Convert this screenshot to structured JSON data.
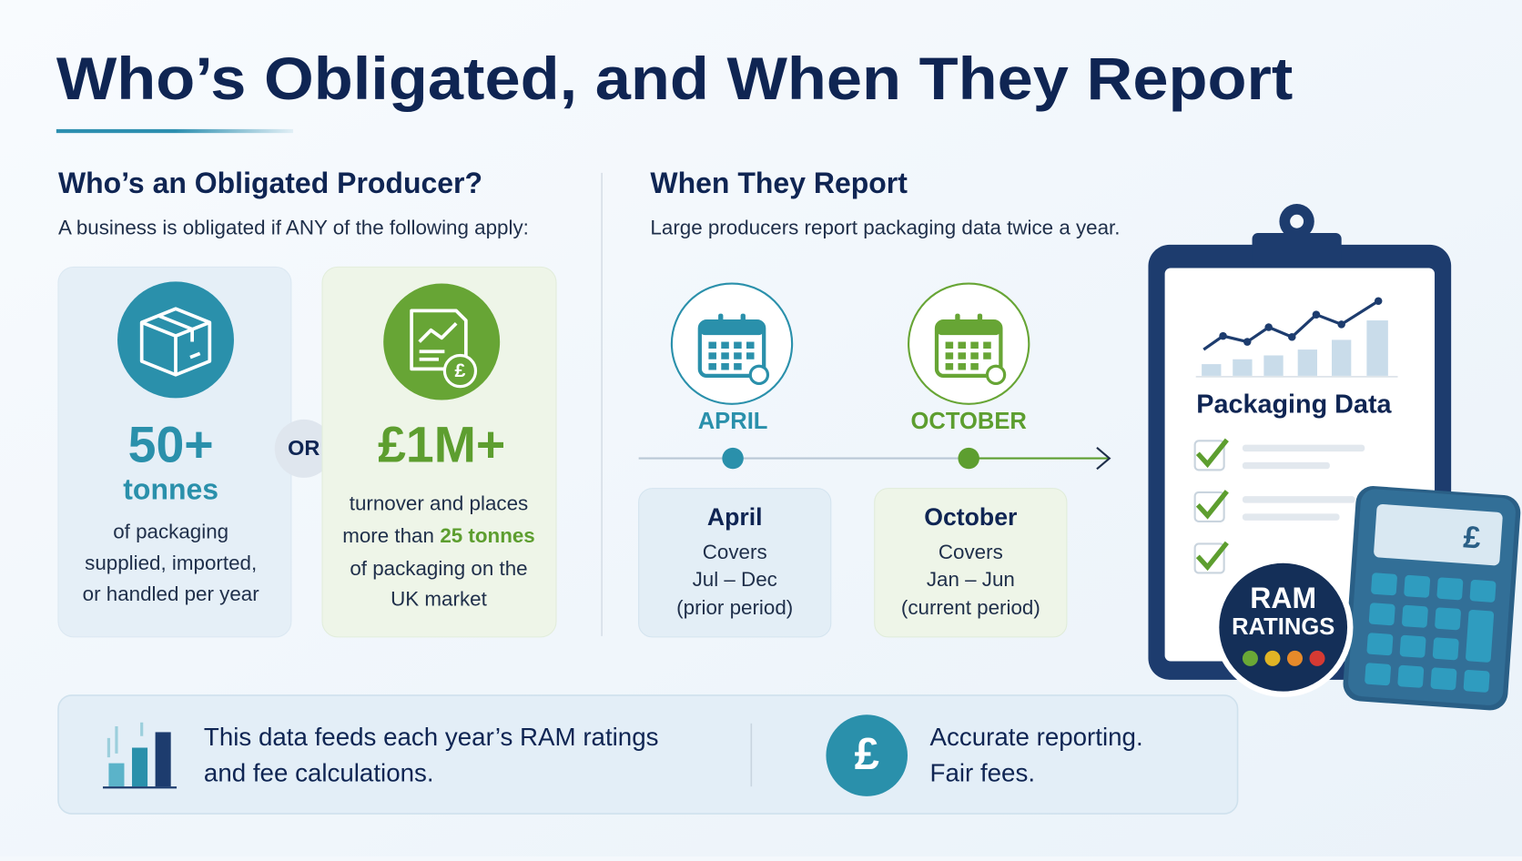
{
  "header": {
    "title": "Who’s Obligated, and When They Report"
  },
  "producer": {
    "heading": "Who’s an Obligated Producer?",
    "intro": "A business is obligated if ANY of the following apply:",
    "separator": "OR",
    "tonnage": {
      "figure": "50+",
      "unit": "tonnes",
      "lines": [
        "of packaging",
        "supplied, imported,",
        "or handled per year"
      ]
    },
    "turnover": {
      "figure": "£1M+",
      "lines": [
        "turnover and places",
        "more than",
        "of packaging on the",
        "UK market"
      ],
      "highlight": "25 tonnes"
    }
  },
  "report": {
    "heading": "When They Report",
    "intro": "Large producers report packaging data twice a year.",
    "periods": [
      {
        "month": "APRIL",
        "title": "April",
        "covers": "Covers",
        "range": "Jul – Dec",
        "period": "(prior period)"
      },
      {
        "month": "OCTOBER",
        "title": "October",
        "covers": "Covers",
        "range": "Jan – Jun",
        "period": "(current period)"
      }
    ]
  },
  "illustration": {
    "clipboard_title": "Packaging Data",
    "badge": [
      "RAM",
      "RATINGS"
    ],
    "currency_symbol": "£"
  },
  "footer": {
    "left": [
      "This data feeds each year’s RAM ratings",
      "and fee calculations."
    ],
    "right": [
      "Accurate reporting.",
      "Fair fees."
    ]
  }
}
